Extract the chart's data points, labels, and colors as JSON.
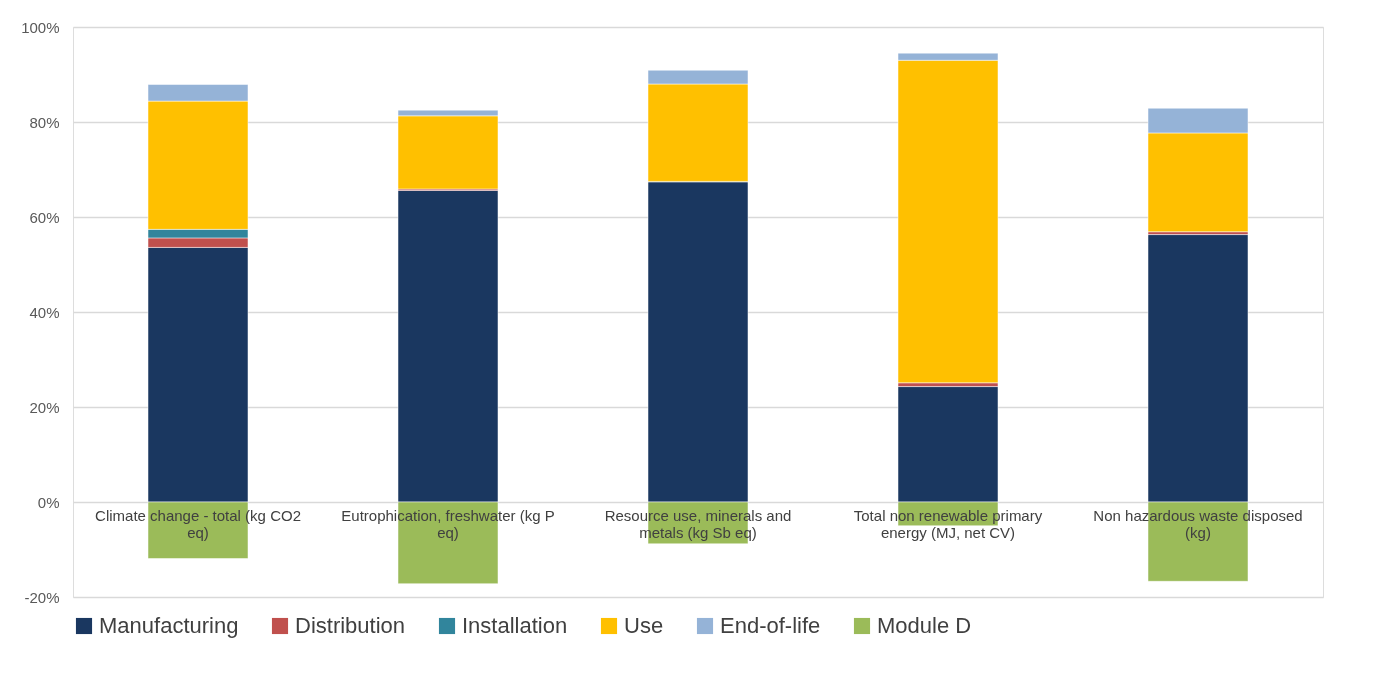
{
  "chart_data": {
    "type": "bar",
    "stacked": true,
    "categories": [
      "Climate change - total (kg CO2 eq)",
      "Eutrophication, freshwater (kg P eq)",
      "Resource use, minerals and metals (kg Sb eq)",
      "Total non renewable primary energy (MJ, net CV)",
      "Non hazardous waste disposed (kg)"
    ],
    "series": [
      {
        "name": "Manufacturing",
        "color": "#1a3760",
        "values": [
          53.6,
          65.6,
          67.4,
          24.3,
          56.3
        ]
      },
      {
        "name": "Distribution",
        "color": "#c0504d",
        "values": [
          2.0,
          0.3,
          null,
          0.8,
          0.6
        ]
      },
      {
        "name": "Installation",
        "color": "#31859c",
        "values": [
          1.8,
          null,
          0.1,
          null,
          null
        ]
      },
      {
        "name": "Use",
        "color": "#ffc000",
        "values": [
          27.0,
          15.4,
          20.5,
          67.9,
          20.8
        ]
      },
      {
        "name": "End-of-life",
        "color": "#95b3d7",
        "values": [
          3.5,
          1.2,
          2.9,
          1.5,
          5.2
        ]
      },
      {
        "name": "Module D",
        "color": "#9bbb59",
        "values": [
          -11.9,
          -17.2,
          -8.8,
          -5.0,
          -16.7
        ]
      }
    ],
    "ylim": [
      -20,
      100
    ],
    "yticks": [
      {
        "value": -20,
        "label": "-20%"
      },
      {
        "value": 0,
        "label": "0%"
      },
      {
        "value": 20,
        "label": "20%"
      },
      {
        "value": 40,
        "label": "40%"
      },
      {
        "value": 60,
        "label": "60%"
      },
      {
        "value": 80,
        "label": "80%"
      },
      {
        "value": 100,
        "label": "100%"
      }
    ],
    "grid": "y",
    "legend": "bottom"
  }
}
